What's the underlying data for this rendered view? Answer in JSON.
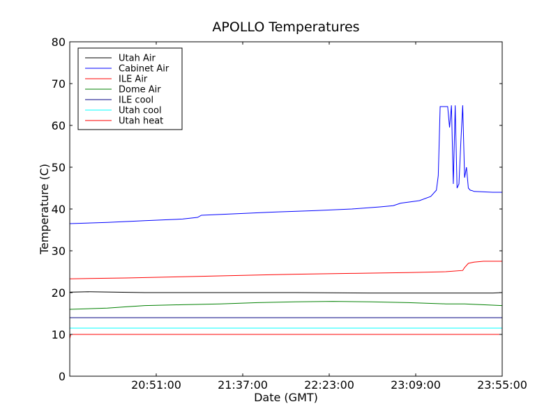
{
  "chart_data": {
    "type": "line",
    "title": "APOLLO Temperatures",
    "xlabel": "Date (GMT)",
    "ylabel": "Temperature (C)",
    "x_unit": "minutes since 20:05:00 GMT",
    "xlim": [
      0,
      230
    ],
    "ylim": [
      0,
      80
    ],
    "xticks": [
      {
        "value": 46,
        "label": "20:51:00"
      },
      {
        "value": 92,
        "label": "21:37:00"
      },
      {
        "value": 138,
        "label": "22:23:00"
      },
      {
        "value": 184,
        "label": "23:09:00"
      },
      {
        "value": 230,
        "label": "23:55:00"
      }
    ],
    "yticks": [
      0,
      10,
      20,
      30,
      40,
      50,
      60,
      70,
      80
    ],
    "grid": false,
    "legend_position": "top-left",
    "series": [
      {
        "name": "Utah Air",
        "color": "#000000",
        "x": [
          0,
          10,
          40,
          80,
          120,
          160,
          200,
          225,
          230
        ],
        "y": [
          20.1,
          20.2,
          20.0,
          20.0,
          20.0,
          19.9,
          19.9,
          19.9,
          20.0
        ]
      },
      {
        "name": "Cabinet Air",
        "color": "#0000ff",
        "x": [
          0,
          20,
          40,
          60,
          68,
          70,
          90,
          110,
          130,
          150,
          165,
          172,
          176,
          186,
          192,
          195,
          196,
          197,
          198,
          200,
          201,
          202,
          203,
          204,
          205,
          206,
          207,
          208,
          209,
          210,
          211,
          212,
          213,
          214,
          215,
          220,
          225,
          230
        ],
        "y": [
          36.5,
          36.8,
          37.2,
          37.6,
          38.0,
          38.5,
          38.9,
          39.3,
          39.6,
          40.0,
          40.5,
          40.8,
          41.4,
          42.0,
          43.0,
          44.5,
          48.0,
          64.5,
          64.5,
          64.5,
          64.5,
          59.5,
          64.8,
          46.0,
          64.8,
          45.0,
          46.0,
          56.0,
          64.8,
          47.5,
          50.0,
          45.0,
          44.5,
          44.4,
          44.2,
          44.1,
          44.0,
          44.0
        ]
      },
      {
        "name": "ILE Air",
        "color": "#ff0000",
        "x": [
          0,
          30,
          60,
          90,
          120,
          150,
          180,
          200,
          209,
          210,
          212,
          215,
          220,
          230
        ],
        "y": [
          23.3,
          23.5,
          23.8,
          24.1,
          24.4,
          24.6,
          24.8,
          25.0,
          25.3,
          26.0,
          27.0,
          27.3,
          27.5,
          27.5
        ]
      },
      {
        "name": "Dome Air",
        "color": "#008000",
        "x": [
          0,
          20,
          30,
          40,
          60,
          80,
          100,
          120,
          140,
          160,
          180,
          200,
          210,
          230
        ],
        "y": [
          16.0,
          16.3,
          16.6,
          16.9,
          17.1,
          17.3,
          17.6,
          17.8,
          17.9,
          17.8,
          17.6,
          17.3,
          17.3,
          16.9
        ]
      },
      {
        "name": "ILE cool",
        "color": "#000080",
        "x": [
          0,
          230
        ],
        "y": [
          14.0,
          14.0
        ]
      },
      {
        "name": "Utah cool",
        "color": "#00ffff",
        "x": [
          0,
          230
        ],
        "y": [
          11.5,
          11.5
        ]
      },
      {
        "name": "Utah heat",
        "color": "#ff0000",
        "x": [
          0,
          0.5,
          1,
          230
        ],
        "y": [
          9.0,
          10.0,
          10.0,
          10.0
        ]
      }
    ]
  }
}
